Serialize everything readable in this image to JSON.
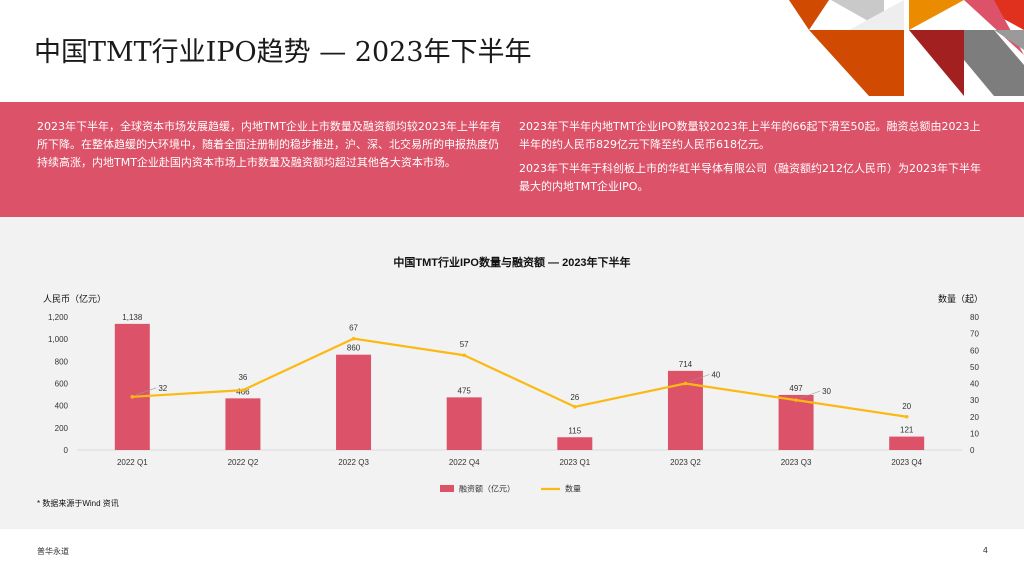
{
  "header": {
    "title": "中国TMT行业IPO趋势 — 2023年下半年"
  },
  "band": {
    "left_paragraphs": [
      "2023年下半年，全球资本市场发展趋缓，内地TMT企业上市数量及融资额均较2023年上半年有所下降。在整体趋缓的大环境中，随着全面注册制的稳步推进，沪、深、北交易所的申报热度仍持续高涨，内地TMT企业赴国内资本市场上市数量及融资额均超过其他各大资本市场。"
    ],
    "right_paragraphs": [
      "2023年下半年内地TMT企业IPO数量较2023年上半年的66起下滑至50起。融资总额由2023上半年的约人民币829亿元下降至约人民币618亿元。",
      "2023年下半年于科创板上市的华虹半导体有限公司（融资额约212亿人民币）为2023年下半年最大的内地TMT企业IPO。"
    ]
  },
  "chart_data": {
    "type": "bar",
    "title": "中国TMT行业IPO数量与融资额 — 2023年下半年",
    "categories": [
      "2022 Q1",
      "2022 Q2",
      "2022 Q3",
      "2022 Q4",
      "2023 Q1",
      "2023 Q2",
      "2023 Q3",
      "2023 Q4"
    ],
    "series": [
      {
        "name": "融资额（亿元）",
        "type": "bar",
        "axis": "left",
        "color": "#dc5269",
        "values": [
          1138,
          466,
          860,
          475,
          115,
          714,
          497,
          121
        ]
      },
      {
        "name": "数量",
        "type": "line",
        "axis": "right",
        "color": "#fbb913",
        "values": [
          32,
          36,
          67,
          57,
          26,
          40,
          30,
          20
        ]
      }
    ],
    "ylabel": "人民币（亿元）",
    "y2label": "数量（起）",
    "ylim": [
      0,
      1200
    ],
    "y2lim": [
      0,
      80
    ],
    "yticks": [
      "0",
      "200",
      "400",
      "600",
      "800",
      "1,000",
      "1,200"
    ],
    "y2ticks": [
      "0",
      "10",
      "20",
      "30",
      "40",
      "50",
      "60",
      "70",
      "80"
    ],
    "bar_labels": [
      "1,138",
      "466",
      "860",
      "475",
      "115",
      "714",
      "497",
      "121"
    ],
    "legend": [
      "融资额（亿元）",
      "数量"
    ],
    "legend_position": "bottom"
  },
  "note": "* 数据来源于Wind 资讯",
  "footer": {
    "brand": "普华永道",
    "page": "4"
  },
  "colors": {
    "accent": "#dc5269",
    "line": "#fbb913",
    "panel": "#f2f2f2"
  }
}
